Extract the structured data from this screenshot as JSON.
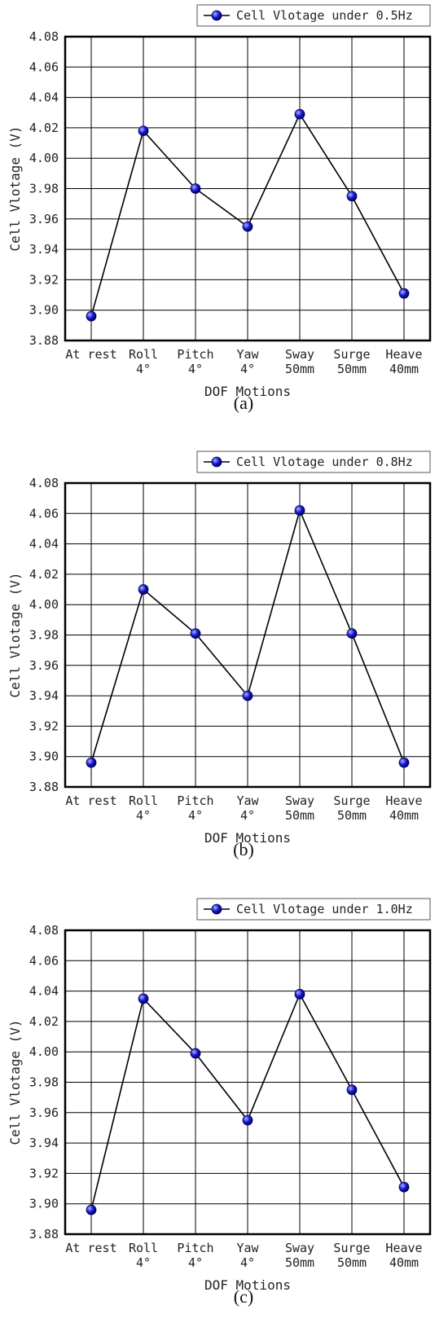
{
  "colors": {
    "line": "#000000",
    "grid": "#000000",
    "marker_fill": "#1a1acc",
    "marker_highlight": "#aab4ff",
    "marker_edge": "#000066"
  },
  "chart_data": [
    {
      "type": "line",
      "panel_label": "(a)",
      "categories": [
        [
          "At rest"
        ],
        [
          "Roll",
          "4°"
        ],
        [
          "Pitch",
          "4°"
        ],
        [
          "Yaw",
          "4°"
        ],
        [
          "Sway",
          "50mm"
        ],
        [
          "Surge",
          "50mm"
        ],
        [
          "Heave",
          "40mm"
        ]
      ],
      "series": [
        {
          "name": "Cell Vlotage under 0.5Hz",
          "values": [
            3.896,
            4.018,
            3.98,
            3.955,
            4.029,
            3.975,
            3.911
          ]
        }
      ],
      "xlabel": "DOF Motions",
      "ylabel": "Cell Vlotage (V)",
      "ylim": [
        3.88,
        4.08
      ],
      "yticks": [
        "3.88",
        "3.90",
        "3.92",
        "3.94",
        "3.96",
        "3.98",
        "4.00",
        "4.02",
        "4.04",
        "4.06",
        "4.08"
      ],
      "grid": true,
      "legend_position": "top-right"
    },
    {
      "type": "line",
      "panel_label": "(b)",
      "categories": [
        [
          "At rest"
        ],
        [
          "Roll",
          "4°"
        ],
        [
          "Pitch",
          "4°"
        ],
        [
          "Yaw",
          "4°"
        ],
        [
          "Sway",
          "50mm"
        ],
        [
          "Surge",
          "50mm"
        ],
        [
          "Heave",
          "40mm"
        ]
      ],
      "series": [
        {
          "name": "Cell Vlotage under 0.8Hz",
          "values": [
            3.896,
            4.01,
            3.981,
            3.94,
            4.062,
            3.981,
            3.896
          ]
        }
      ],
      "xlabel": "DOF Motions",
      "ylabel": "Cell Vlotage (V)",
      "ylim": [
        3.88,
        4.08
      ],
      "yticks": [
        "3.88",
        "3.90",
        "3.92",
        "3.94",
        "3.96",
        "3.98",
        "4.00",
        "4.02",
        "4.04",
        "4.06",
        "4.08"
      ],
      "grid": true,
      "legend_position": "top-right"
    },
    {
      "type": "line",
      "panel_label": "(c)",
      "categories": [
        [
          "At rest"
        ],
        [
          "Roll",
          "4°"
        ],
        [
          "Pitch",
          "4°"
        ],
        [
          "Yaw",
          "4°"
        ],
        [
          "Sway",
          "50mm"
        ],
        [
          "Surge",
          "50mm"
        ],
        [
          "Heave",
          "40mm"
        ]
      ],
      "series": [
        {
          "name": "Cell Vlotage under 1.0Hz",
          "values": [
            3.896,
            4.035,
            3.999,
            3.955,
            4.038,
            3.975,
            3.911
          ]
        }
      ],
      "xlabel": "DOF Motions",
      "ylabel": "Cell Vlotage (V)",
      "ylim": [
        3.88,
        4.08
      ],
      "yticks": [
        "3.88",
        "3.90",
        "3.92",
        "3.94",
        "3.96",
        "3.98",
        "4.00",
        "4.02",
        "4.04",
        "4.06",
        "4.08"
      ],
      "grid": true,
      "legend_position": "top-right"
    }
  ]
}
